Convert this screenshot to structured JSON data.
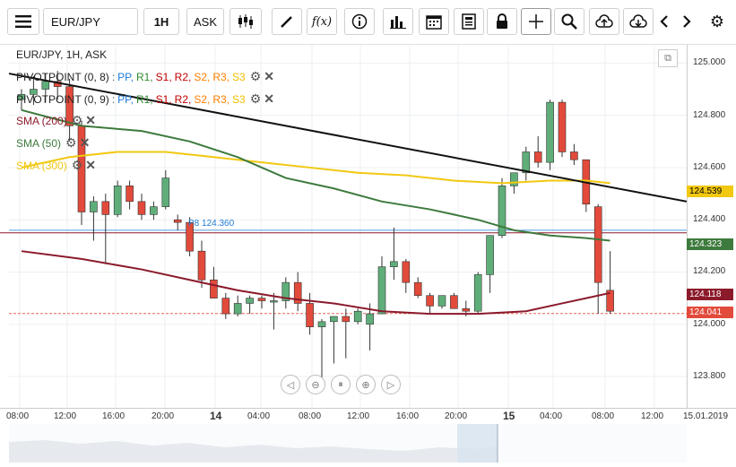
{
  "toolbar": {
    "symbol": "EUR/JPY",
    "timeframe": "1H",
    "price_type": "ASK"
  },
  "chart_header": "EUR/JPY, 1H, ASK",
  "indicators": [
    {
      "label": "PIVOTPOINT (0, 8)",
      "parts": [
        "PP,",
        "R1,",
        "S1,",
        "R2,",
        "S2,",
        "R3,",
        "S3"
      ]
    },
    {
      "label": "PIVOTPOINT (0, 9)",
      "parts": [
        "PP,",
        "R1,",
        "S1,",
        "R2,",
        "S2,",
        "R3,",
        "S3"
      ]
    },
    {
      "label": "SMA (200)",
      "color": "#8b1a2b"
    },
    {
      "label": "SMA (50)",
      "color": "#3d7a3d"
    },
    {
      "label": "SMA (300)",
      "color": "#f2c811"
    }
  ],
  "pivot_colors": [
    "#1e7bd6",
    "#2e8b2e",
    "#c00000",
    "#c00000",
    "#ff7f00",
    "#ff7f00",
    "#f0c000"
  ],
  "pivot_label": "P8 124.360",
  "price_tags": [
    {
      "value": "124.539",
      "color": "#f2c811",
      "text_color": "#000"
    },
    {
      "value": "124.323",
      "color": "#3d7a3d",
      "text_color": "#fff"
    },
    {
      "value": "124.118",
      "color": "#8b1a2b",
      "text_color": "#fff"
    },
    {
      "value": "124.041",
      "color": "#e24a3b",
      "text_color": "#fff"
    }
  ],
  "chart_data": {
    "type": "candlestick",
    "ylim": [
      123.68,
      125.07
    ],
    "y_ticks": [
      "125.000",
      "124.800",
      "124.600",
      "124.400",
      "124.200",
      "124.000",
      "123.800"
    ],
    "x_ticks": [
      "08:00",
      "12:00",
      "16:00",
      "20:00",
      "14",
      "04:00",
      "08:00",
      "12:00",
      "16:00",
      "20:00",
      "15",
      "04:00",
      "08:00",
      "12:00",
      "15.01.2019"
    ],
    "candles": [
      [
        124.86,
        124.9,
        124.82,
        124.88
      ],
      [
        124.88,
        124.95,
        124.84,
        124.9
      ],
      [
        124.9,
        124.96,
        124.85,
        124.93
      ],
      [
        124.93,
        124.97,
        124.86,
        124.91
      ],
      [
        124.91,
        124.94,
        124.7,
        124.76
      ],
      [
        124.76,
        124.78,
        124.38,
        124.43
      ],
      [
        124.43,
        124.49,
        124.32,
        124.47
      ],
      [
        124.47,
        124.5,
        124.23,
        124.42
      ],
      [
        124.42,
        124.55,
        124.41,
        124.53
      ],
      [
        124.53,
        124.55,
        124.44,
        124.47
      ],
      [
        124.47,
        124.5,
        124.4,
        124.42
      ],
      [
        124.42,
        124.47,
        124.4,
        124.45
      ],
      [
        124.45,
        124.59,
        124.44,
        124.56
      ],
      [
        124.4,
        124.42,
        124.36,
        124.39
      ],
      [
        124.39,
        124.41,
        124.26,
        124.28
      ],
      [
        124.28,
        124.32,
        124.14,
        124.17
      ],
      [
        124.17,
        124.22,
        124.1,
        124.1
      ],
      [
        124.1,
        124.12,
        124.02,
        124.04
      ],
      [
        124.04,
        124.11,
        124.03,
        124.08
      ],
      [
        124.08,
        124.11,
        124.04,
        124.1
      ],
      [
        124.1,
        124.11,
        124.06,
        124.09
      ],
      [
        124.09,
        124.12,
        123.98,
        124.09
      ],
      [
        124.09,
        124.18,
        124.06,
        124.16
      ],
      [
        124.16,
        124.2,
        124.05,
        124.08
      ],
      [
        124.08,
        124.12,
        123.96,
        123.99
      ],
      [
        123.99,
        124.02,
        123.78,
        124.01
      ],
      [
        124.01,
        124.03,
        123.85,
        124.03
      ],
      [
        124.03,
        124.06,
        123.87,
        124.01
      ],
      [
        124.01,
        124.06,
        124.0,
        124.05
      ],
      [
        124.0,
        124.08,
        123.9,
        124.04
      ],
      [
        124.04,
        124.26,
        124.04,
        124.22
      ],
      [
        124.22,
        124.37,
        124.17,
        124.24
      ],
      [
        124.24,
        124.25,
        124.12,
        124.16
      ],
      [
        124.16,
        124.18,
        124.1,
        124.11
      ],
      [
        124.11,
        124.12,
        124.04,
        124.07
      ],
      [
        124.07,
        124.11,
        124.06,
        124.11
      ],
      [
        124.11,
        124.12,
        124.06,
        124.06
      ],
      [
        124.06,
        124.09,
        124.03,
        124.05
      ],
      [
        124.05,
        124.2,
        124.04,
        124.19
      ],
      [
        124.19,
        124.33,
        124.12,
        124.34
      ],
      [
        124.34,
        124.56,
        124.33,
        124.53
      ],
      [
        124.53,
        124.58,
        124.5,
        124.58
      ],
      [
        124.58,
        124.68,
        124.55,
        124.66
      ],
      [
        124.66,
        124.72,
        124.6,
        124.62
      ],
      [
        124.62,
        124.86,
        124.59,
        124.85
      ],
      [
        124.85,
        124.86,
        124.64,
        124.66
      ],
      [
        124.66,
        124.69,
        124.61,
        124.63
      ],
      [
        124.63,
        124.63,
        124.43,
        124.46
      ],
      [
        124.45,
        124.46,
        124.04,
        124.16
      ],
      [
        124.13,
        124.28,
        124.04,
        124.05
      ]
    ],
    "sma50": [
      [
        0,
        124.82
      ],
      [
        5,
        124.76
      ],
      [
        10,
        124.74
      ],
      [
        14,
        124.7
      ],
      [
        18,
        124.64
      ],
      [
        22,
        124.56
      ],
      [
        26,
        124.52
      ],
      [
        30,
        124.47
      ],
      [
        34,
        124.44
      ],
      [
        38,
        124.4
      ],
      [
        41,
        124.36
      ],
      [
        44,
        124.34
      ],
      [
        47,
        124.33
      ],
      [
        49,
        124.32
      ]
    ],
    "sma200": [
      [
        0,
        124.28
      ],
      [
        5,
        124.25
      ],
      [
        10,
        124.21
      ],
      [
        14,
        124.17
      ],
      [
        18,
        124.13
      ],
      [
        22,
        124.1
      ],
      [
        26,
        124.08
      ],
      [
        30,
        124.05
      ],
      [
        34,
        124.04
      ],
      [
        38,
        124.04
      ],
      [
        42,
        124.05
      ],
      [
        45,
        124.08
      ],
      [
        48,
        124.11
      ],
      [
        49,
        124.12
      ]
    ],
    "sma300": [
      [
        0,
        124.6
      ],
      [
        4,
        124.64
      ],
      [
        8,
        124.66
      ],
      [
        12,
        124.66
      ],
      [
        16,
        124.64
      ],
      [
        20,
        124.62
      ],
      [
        24,
        124.6
      ],
      [
        28,
        124.58
      ],
      [
        32,
        124.57
      ],
      [
        36,
        124.55
      ],
      [
        40,
        124.54
      ],
      [
        44,
        124.55
      ],
      [
        47,
        124.55
      ],
      [
        49,
        124.54
      ]
    ],
    "trendline": [
      [
        124.96,
        0
      ],
      [
        124.47,
        53
      ]
    ],
    "pivot_level": 124.36,
    "support_level": 124.35,
    "current_price": 124.041
  }
}
